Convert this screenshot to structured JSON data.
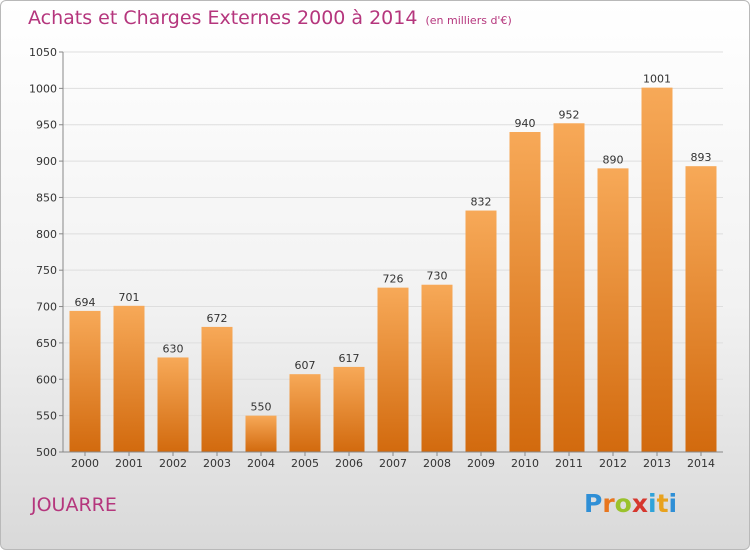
{
  "chart_data": {
    "type": "bar",
    "title": "Achats et Charges Externes 2000 à 2014",
    "subtitle": "(en milliers d'€)",
    "categories": [
      "2000",
      "2001",
      "2002",
      "2003",
      "2004",
      "2005",
      "2006",
      "2007",
      "2008",
      "2009",
      "2010",
      "2011",
      "2012",
      "2013",
      "2014"
    ],
    "values": [
      694,
      701,
      630,
      672,
      550,
      607,
      617,
      726,
      730,
      832,
      940,
      952,
      890,
      1001,
      893
    ],
    "ylim": [
      500,
      1050
    ],
    "yticks": [
      500,
      550,
      600,
      650,
      700,
      750,
      800,
      850,
      900,
      950,
      1000,
      1050
    ],
    "grid": true,
    "bar_color": "#f08d2b"
  },
  "location": "JOUARRE",
  "brand": {
    "name": "Proxiti",
    "letters": [
      "P",
      "r",
      "o",
      "x",
      "i",
      "t",
      "i"
    ],
    "colors": [
      "#2f8fd6",
      "#e8761e",
      "#9ac22c",
      "#d6372e",
      "#2fa3d9",
      "#e8a21e",
      "#2f8fd6"
    ]
  }
}
